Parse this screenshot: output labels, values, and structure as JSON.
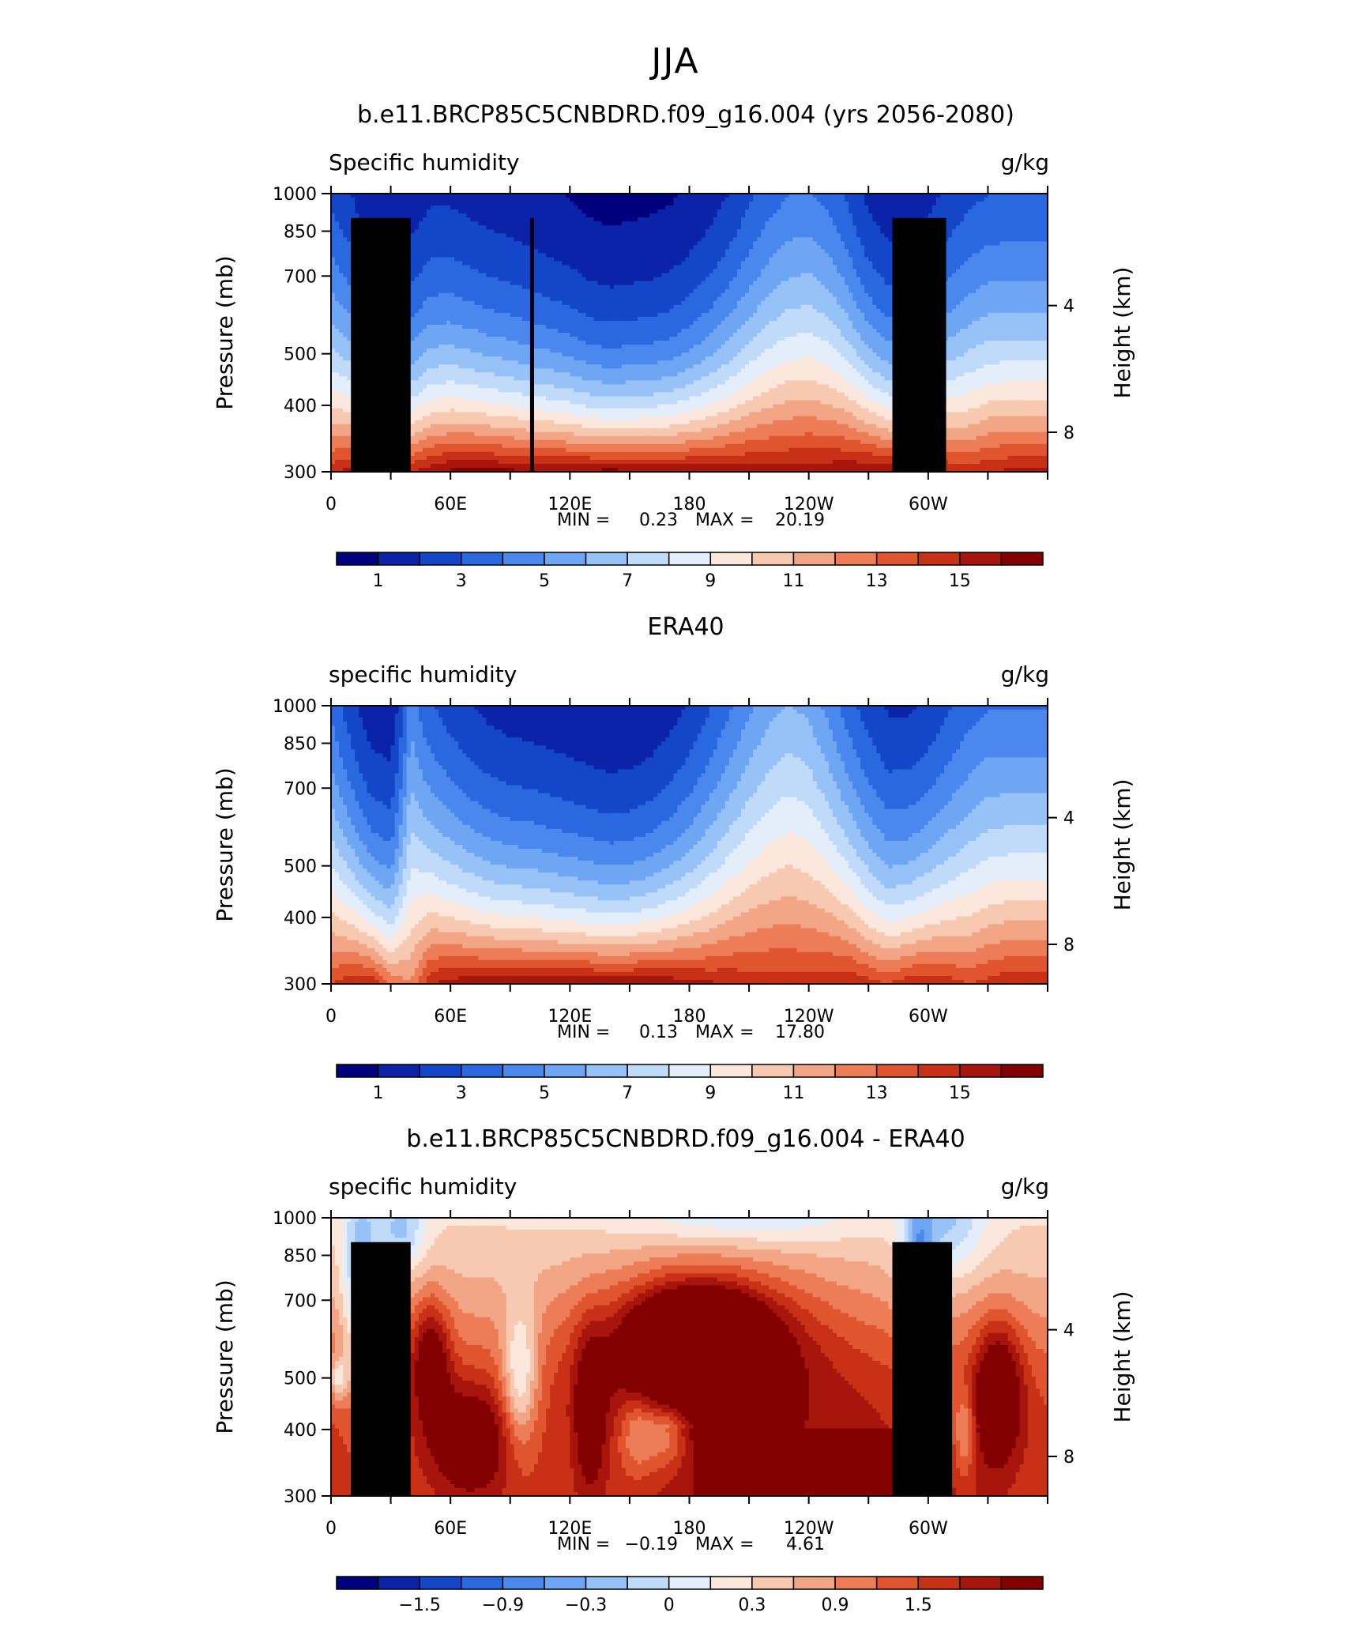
{
  "figure": {
    "title": "JJA",
    "colors": [
      "#00007f",
      "#0a23a8",
      "#1446c8",
      "#2a68e0",
      "#4a88ee",
      "#6fa6f3",
      "#97c2f7",
      "#c0daf9",
      "#e4eefb",
      "#fbe7dc",
      "#f8c9b1",
      "#f3a685",
      "#ec7d57",
      "#e0552f",
      "#c93116",
      "#a8150c",
      "#820000"
    ]
  },
  "chart_data": [
    {
      "type": "heatmap",
      "title": "b.e11.BRCP85C5CNBDRD.f09_g16.004 (yrs 2056-2080)",
      "left_label": "Specific humidity",
      "right_label": "g/kg",
      "ylabel": "Pressure (mb)",
      "ylabel_right": "Height (km)",
      "yticks": [
        "300",
        "400",
        "500",
        "700",
        "850",
        "1000"
      ],
      "yticks_right": [
        "8",
        "4"
      ],
      "xticks": [
        "0",
        "60E",
        "120E",
        "180",
        "120W",
        "60W"
      ],
      "stats": {
        "min_label": "MIN =",
        "min": "0.23",
        "max_label": "MAX =",
        "max": "20.19"
      },
      "colorbar_labels": [
        "1",
        "3",
        "5",
        "7",
        "9",
        "11",
        "13",
        "15"
      ],
      "lon": [
        0,
        10,
        20,
        30,
        40,
        50,
        60,
        70,
        80,
        90,
        100,
        110,
        120,
        130,
        140,
        150,
        160,
        170,
        180,
        190,
        200,
        210,
        220,
        230,
        240,
        250,
        260,
        270,
        280,
        290,
        300,
        310,
        320,
        330,
        340,
        350,
        360
      ],
      "levels": [
        1000,
        850,
        700,
        500,
        400,
        300
      ],
      "profile_limits": [
        [
          14.8,
          15.5,
          16.8,
          15.5,
          15.0,
          15.8,
          16.3,
          16.5,
          16.4,
          16.3,
          16.2,
          16.3,
          16.2,
          16.3,
          16.4,
          16.3,
          16.2,
          16.1,
          16.0,
          15.9,
          15.8,
          15.7,
          15.6,
          15.6,
          15.6,
          15.8,
          16.0,
          16.2,
          16.0,
          15.8,
          15.5,
          15.0,
          14.5,
          15.0,
          15.2,
          15.2,
          15.2
        ],
        [
          9.0,
          8.5,
          7.6,
          7.0,
          7.4,
          8.3,
          8.5,
          8.3,
          8.0,
          7.8,
          7.5,
          7.3,
          7.0,
          6.6,
          6.4,
          6.5,
          6.6,
          6.8,
          7.3,
          7.9,
          8.6,
          9.4,
          10.0,
          10.4,
          10.5,
          10.2,
          9.5,
          8.4,
          7.6,
          7.8,
          8.0,
          8.5,
          8.8,
          9.3,
          9.4,
          9.4,
          9.4
        ]
      ],
      "masks": [
        {
          "lon0": 10,
          "lon1": 40,
          "top": 900
        },
        {
          "lon0": 28,
          "lon1": 35,
          "top": 840
        },
        {
          "lon0": 100,
          "lon1": 102,
          "top": 900
        },
        {
          "lon0": 282,
          "lon1": 309,
          "top": 900
        }
      ]
    },
    {
      "type": "heatmap",
      "title": "ERA40",
      "left_label": "specific humidity",
      "right_label": "g/kg",
      "ylabel": "Pressure (mb)",
      "ylabel_right": "Height (km)",
      "yticks": [
        "300",
        "400",
        "500",
        "700",
        "850",
        "1000"
      ],
      "yticks_right": [
        "8",
        "4"
      ],
      "xticks": [
        "0",
        "60E",
        "120E",
        "180",
        "120W",
        "60W"
      ],
      "stats": {
        "min_label": "MIN =",
        "min": "0.13",
        "max_label": "MAX =",
        "max": "17.80"
      },
      "colorbar_labels": [
        "1",
        "3",
        "5",
        "7",
        "9",
        "11",
        "13",
        "15"
      ],
      "lon": [
        0,
        10,
        20,
        30,
        40,
        50,
        60,
        70,
        80,
        90,
        100,
        110,
        120,
        130,
        140,
        150,
        160,
        170,
        180,
        190,
        200,
        210,
        220,
        230,
        240,
        250,
        260,
        270,
        280,
        290,
        300,
        310,
        320,
        330,
        340,
        350,
        360
      ],
      "levels": [
        1000,
        850,
        700,
        500,
        400,
        300
      ],
      "profile_limits": [
        [
          14.0,
          14.8,
          15.0,
          13.0,
          12.0,
          15.0,
          15.5,
          15.8,
          15.9,
          16.0,
          16.0,
          16.0,
          16.0,
          16.0,
          16.0,
          16.0,
          16.0,
          15.8,
          15.5,
          15.2,
          15.0,
          14.8,
          14.6,
          14.5,
          14.5,
          14.8,
          15.0,
          14.5,
          14.0,
          14.8,
          15.0,
          14.6,
          14.0,
          14.4,
          14.8,
          14.8,
          14.8
        ],
        [
          9.5,
          8.6,
          7.4,
          6.5,
          9.0,
          9.4,
          9.0,
          8.6,
          8.2,
          8.0,
          7.9,
          7.7,
          7.5,
          7.3,
          7.1,
          7.2,
          7.5,
          8.0,
          8.6,
          9.3,
          10.0,
          10.6,
          11.0,
          11.2,
          11.0,
          10.5,
          9.7,
          8.6,
          7.7,
          8.0,
          8.5,
          9.0,
          9.3,
          9.8,
          10.0,
          10.0,
          10.0
        ]
      ],
      "masks": []
    },
    {
      "type": "heatmap",
      "title": "b.e11.BRCP85C5CNBDRD.f09_g16.004 - ERA40",
      "left_label": "specific humidity",
      "right_label": "g/kg",
      "ylabel": "Pressure (mb)",
      "ylabel_right": "Height (km)",
      "yticks": [
        "300",
        "400",
        "500",
        "700",
        "850",
        "1000"
      ],
      "yticks_right": [
        "8",
        "4"
      ],
      "xticks": [
        "0",
        "60E",
        "120E",
        "180",
        "120W",
        "60W"
      ],
      "stats": {
        "min_label": "MIN =",
        "min": "−0.19",
        "max_label": "MAX =",
        "max": "4.61"
      },
      "colorbar_labels": [
        "−1.5",
        "−0.9",
        "−0.3",
        "0",
        "0.3",
        "0.9",
        "1.5"
      ],
      "lon": [
        0,
        10,
        20,
        30,
        40,
        50,
        60,
        70,
        80,
        90,
        100,
        110,
        120,
        130,
        140,
        150,
        160,
        170,
        180,
        190,
        200,
        210,
        220,
        230,
        240,
        250,
        260,
        270,
        280,
        290,
        300,
        310,
        320,
        330,
        340,
        350,
        360
      ],
      "levels": [
        1000,
        850,
        700,
        500,
        400,
        300
      ],
      "masks": [
        {
          "lon0": 10,
          "lon1": 40,
          "top": 900
        },
        {
          "lon0": 28,
          "lon1": 35,
          "top": 840
        },
        {
          "lon0": 282,
          "lon1": 312,
          "top": 900
        }
      ]
    }
  ]
}
